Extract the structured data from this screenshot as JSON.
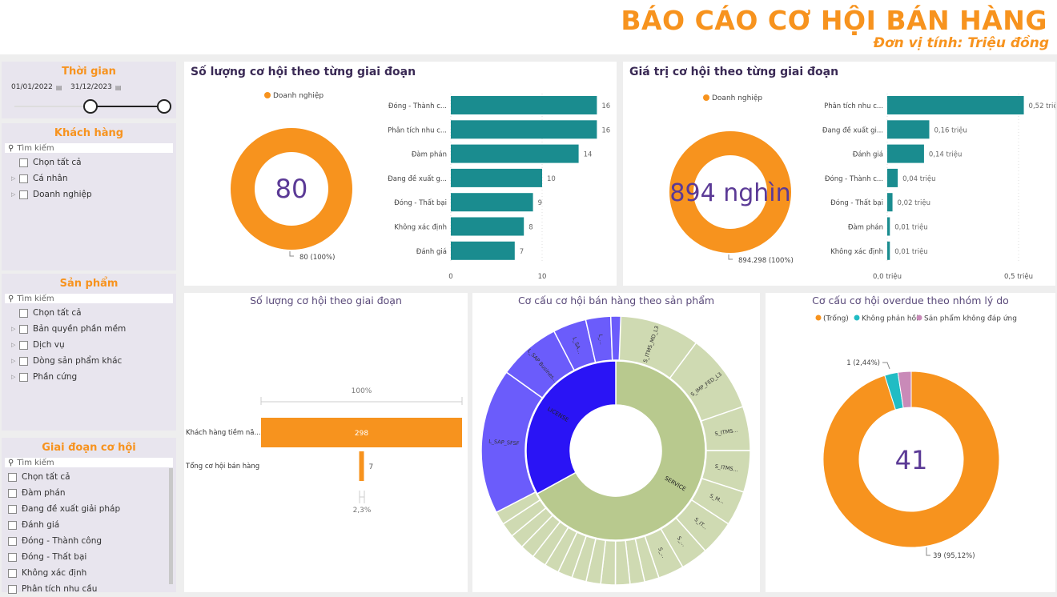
{
  "header": {
    "title": "BÁO CÁO CƠ HỘI BÁN HÀNG",
    "subtitle": "Đơn vị tính: Triệu đồng"
  },
  "colors": {
    "accent": "#f7931e",
    "bar": "#1a8c8f",
    "title_text": "#3a2a55",
    "kpi_text": "#5b3a96",
    "license": "#2a14f5",
    "license_outer": "#6b5cfb",
    "service": "#b8c98e",
    "service_outer": "#cfdab2",
    "teal": "#21bcc4",
    "pink": "#c98ab8"
  },
  "slicers": {
    "time": {
      "title": "Thời gian",
      "start": "01/01/2022",
      "end": "31/12/2023",
      "calendar_icon": "calendar-icon"
    },
    "customer": {
      "title": "Khách hàng",
      "search_placeholder": "Tìm kiếm",
      "items": [
        {
          "label": "Chọn tất cả",
          "expandable": false
        },
        {
          "label": "Cá nhân",
          "expandable": true
        },
        {
          "label": "Doanh nghiệp",
          "expandable": true
        }
      ]
    },
    "product": {
      "title": "Sản phẩm",
      "search_placeholder": "Tìm kiếm",
      "items": [
        {
          "label": "Chọn tất cả",
          "expandable": false
        },
        {
          "label": "Bản quyền phần mềm",
          "expandable": true
        },
        {
          "label": "Dịch vụ",
          "expandable": true
        },
        {
          "label": "Dòng sản phẩm khác",
          "expandable": true
        },
        {
          "label": "Phần cứng",
          "expandable": true
        }
      ]
    },
    "stage": {
      "title": "Giai đoạn cơ hội",
      "search_placeholder": "Tìm kiếm",
      "items": [
        {
          "label": "Chọn tất cả"
        },
        {
          "label": "Đàm phán"
        },
        {
          "label": "Đang đề xuất giải pháp"
        },
        {
          "label": "Đánh giá"
        },
        {
          "label": "Đóng - Thành công"
        },
        {
          "label": "Đóng - Thất bại"
        },
        {
          "label": "Không xác định"
        },
        {
          "label": "Phân tích nhu cầu"
        }
      ]
    }
  },
  "chart_data": [
    {
      "id": "count_by_stage",
      "type": "bar",
      "title": "Số lượng cơ hội theo từng giai đoạn",
      "donut": {
        "legend": "Doanh nghiệp",
        "center_value": "80",
        "label": "80 (100%)",
        "values": [
          80
        ]
      },
      "categories": [
        "Đóng - Thành c...",
        "Phân tích nhu c...",
        "Đàm phán",
        "Đang đề xuất g...",
        "Đóng - Thất bại",
        "Không xác định",
        "Đánh giá"
      ],
      "values": [
        16,
        16,
        14,
        10,
        9,
        8,
        7
      ],
      "value_labels": [
        "16",
        "16",
        "14",
        "10",
        "9",
        "8",
        "7"
      ],
      "xticks": [
        {
          "v": 0,
          "label": "0"
        },
        {
          "v": 10,
          "label": "10"
        }
      ],
      "xlim": [
        0,
        17
      ]
    },
    {
      "id": "value_by_stage",
      "type": "bar",
      "title": "Giá trị cơ hội theo từng giai đoạn",
      "donut": {
        "legend": "Doanh nghiệp",
        "center_value": "894 nghìn",
        "label": "894.298 (100%)",
        "values": [
          894298
        ]
      },
      "categories": [
        "Phân tích nhu c...",
        "Đang đề xuất gi...",
        "Đánh giá",
        "Đóng - Thành c...",
        "Đóng - Thất bại",
        "Đàm phán",
        "Không xác định"
      ],
      "values": [
        0.52,
        0.16,
        0.14,
        0.04,
        0.02,
        0.01,
        0.01
      ],
      "value_labels": [
        "0,52 triệu",
        "0,16 triệu",
        "0,14 triệu",
        "0,04 triệu",
        "0,02 triệu",
        "0,01 triệu",
        "0,01 triệu"
      ],
      "xticks": [
        {
          "v": 0,
          "label": "0,0 triệu"
        },
        {
          "v": 0.5,
          "label": "0,5 triệu"
        }
      ],
      "xlim": [
        0,
        0.55
      ]
    },
    {
      "id": "funnel",
      "type": "bar",
      "title": "Số lượng cơ hội theo giai đoạn",
      "categories": [
        "Khách hàng tiềm nă...",
        "Tổng cơ hội bán hàng"
      ],
      "values": [
        298,
        7
      ],
      "value_labels": [
        "298",
        "7"
      ],
      "top_pct": "100%",
      "bottom_pct": "2,3%"
    },
    {
      "id": "sunburst",
      "type": "pie",
      "title": "Cơ cấu cơ hội bán hàng theo sản phẩm",
      "inner": [
        {
          "label": "SERVICE",
          "share": 0.67
        },
        {
          "label": "LICENSE",
          "share": 0.33
        }
      ],
      "outer": [
        {
          "parent": "SERVICE",
          "label": "S_ITMS_MD_L3",
          "share": 0.102
        },
        {
          "parent": "SERVICE",
          "label": "S_IMP_FED_L3",
          "share": 0.095
        },
        {
          "parent": "SERVICE",
          "label": "S_ITMS...",
          "share": 0.053
        },
        {
          "parent": "SERVICE",
          "label": "S_ITMS...",
          "share": 0.05
        },
        {
          "parent": "SERVICE",
          "label": "S_M...",
          "share": 0.042
        },
        {
          "parent": "SERVICE",
          "label": "S_IT...",
          "share": 0.042
        },
        {
          "parent": "SERVICE",
          "label": "S_...",
          "share": 0.033
        },
        {
          "parent": "SERVICE",
          "label": "S_...",
          "share": 0.031
        },
        {
          "parent": "SERVICE",
          "label": "",
          "share": 0.0175
        },
        {
          "parent": "SERVICE",
          "label": "",
          "share": 0.0175
        },
        {
          "parent": "SERVICE",
          "label": "",
          "share": 0.0175
        },
        {
          "parent": "SERVICE",
          "label": "",
          "share": 0.0175
        },
        {
          "parent": "SERVICE",
          "label": "",
          "share": 0.0175
        },
        {
          "parent": "SERVICE",
          "label": "",
          "share": 0.0175
        },
        {
          "parent": "SERVICE",
          "label": "",
          "share": 0.0175
        },
        {
          "parent": "SERVICE",
          "label": "",
          "share": 0.0175
        },
        {
          "parent": "SERVICE",
          "label": "",
          "share": 0.0175
        },
        {
          "parent": "SERVICE",
          "label": "",
          "share": 0.0175
        },
        {
          "parent": "SERVICE",
          "label": "",
          "share": 0.0175
        },
        {
          "parent": "SERVICE",
          "label": "",
          "share": 0.0175
        },
        {
          "parent": "SERVICE",
          "label": "",
          "share": 0.016
        },
        {
          "parent": "LICENSE",
          "label": "L_SAP_SFSF",
          "share": 0.175
        },
        {
          "parent": "LICENSE",
          "label": "L_SAP Busines...",
          "share": 0.075
        },
        {
          "parent": "LICENSE",
          "label": "L_SA...",
          "share": 0.04
        },
        {
          "parent": "LICENSE",
          "label": "L_...",
          "share": 0.03
        },
        {
          "parent": "LICENSE",
          "label": "",
          "share": 0.012
        }
      ]
    },
    {
      "id": "overdue",
      "type": "pie",
      "title": "Cơ cấu cơ hội overdue theo nhóm lý do",
      "center_value": "41",
      "series": [
        {
          "name": "(Trống)",
          "value": 39,
          "label": "39 (95,12%)",
          "color": "#f7931e"
        },
        {
          "name": "Không phản hồi",
          "value": 1,
          "label": "1 (2,44%)",
          "color": "#21bcc4"
        },
        {
          "name": "Sản phẩm không đáp ứng",
          "value": 1,
          "label": "",
          "color": "#c98ab8"
        }
      ],
      "legend": "top"
    }
  ]
}
